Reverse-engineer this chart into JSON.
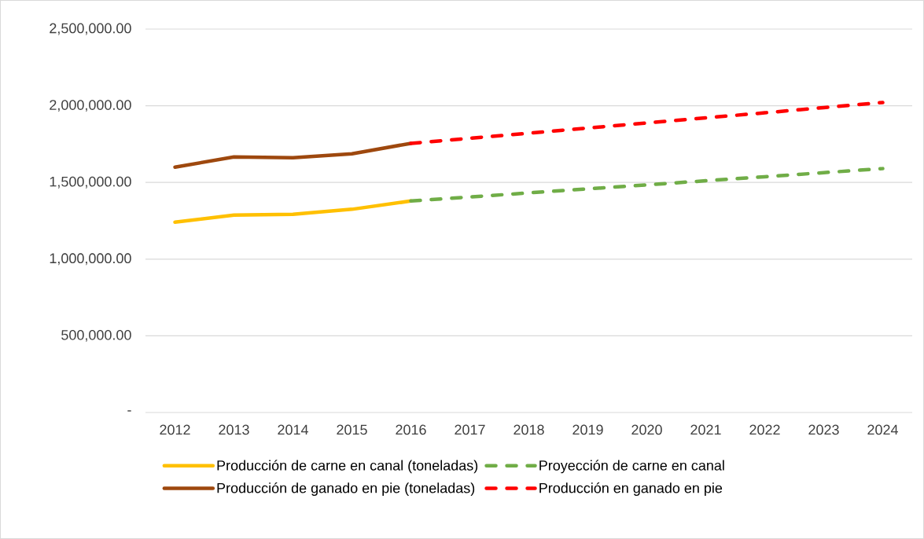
{
  "chart_data": {
    "type": "line",
    "categories": [
      "2012",
      "2013",
      "2014",
      "2015",
      "2016",
      "2017",
      "2018",
      "2019",
      "2020",
      "2021",
      "2022",
      "2023",
      "2024"
    ],
    "series": [
      {
        "name": "Producción de carne en canal  (toneladas)",
        "color": "#ffc000",
        "line_style": "solid",
        "values": [
          1241000,
          1287000,
          1292000,
          1325000,
          1379000,
          null,
          null,
          null,
          null,
          null,
          null,
          null,
          null
        ]
      },
      {
        "name": "Proyección de carne en canal",
        "color": "#70ad47",
        "line_style": "dashed",
        "values": [
          null,
          null,
          null,
          null,
          1379000,
          1405000,
          1432000,
          1458000,
          1484000,
          1511000,
          1537000,
          1564000,
          1590000
        ]
      },
      {
        "name": "Producción de ganado en pie (toneladas)",
        "color": "#9e480e",
        "line_style": "solid",
        "values": [
          1600000,
          1666000,
          1661000,
          1687000,
          1755000,
          null,
          null,
          null,
          null,
          null,
          null,
          null,
          null
        ]
      },
      {
        "name": "Producción en ganado en pie",
        "color": "#ff0000",
        "line_style": "dashed",
        "values": [
          null,
          null,
          null,
          null,
          1755000,
          1788000,
          1821000,
          1855000,
          1888000,
          1921000,
          1954000,
          1988000,
          2021000
        ]
      }
    ],
    "ylim": [
      0,
      2500000
    ],
    "yticks": [
      {
        "value": 0,
        "label": "-"
      },
      {
        "value": 500000,
        "label": "500,000.00"
      },
      {
        "value": 1000000,
        "label": "1,000,000.00"
      },
      {
        "value": 1500000,
        "label": "1,500,000.00"
      },
      {
        "value": 2000000,
        "label": "2,000,000.00"
      },
      {
        "value": 2500000,
        "label": "2,500,000.00"
      }
    ],
    "grid": "y",
    "legend": "bottom"
  }
}
